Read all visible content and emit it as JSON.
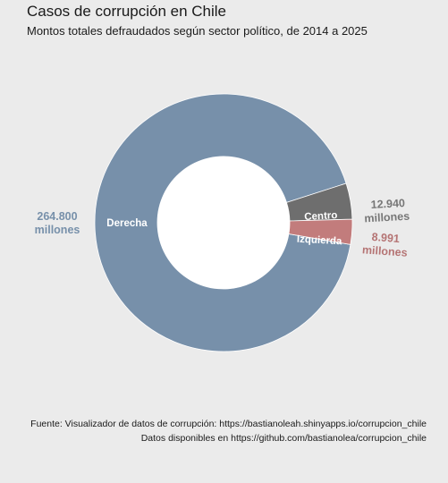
{
  "title": "Casos de corrupción en Chile",
  "subtitle": "Montos totales defraudados según sector político, de 2014 a 2025",
  "caption_lines": [
    "Fuente: Visualizador de datos de corrupción: https://bastianoleah.shinyapps.io/corrupcion_chile",
    "Datos disponibles en https://github.com/bastianolea/corrupcion_chile"
  ],
  "chart_data": {
    "type": "pie",
    "donut": true,
    "title": "Casos de corrupción en Chile",
    "subtitle": "Montos totales defraudados según sector político, de 2014 a 2025",
    "unit": "millones",
    "slices": [
      {
        "label": "Derecha",
        "value": 264800,
        "value_label": "264.800",
        "color": "#7790aa",
        "value_label_color": "#7790aa"
      },
      {
        "label": "Centro",
        "value": 12940,
        "value_label": "12.940",
        "color": "#6e6e6e",
        "value_label_color": "#777777"
      },
      {
        "label": "Izquierda",
        "value": 8991,
        "value_label": "8.991",
        "color": "#c27c7c",
        "value_label_color": "#b57474"
      }
    ],
    "legend": "none",
    "value_label_position": "outside",
    "category_label_position": "inside"
  }
}
